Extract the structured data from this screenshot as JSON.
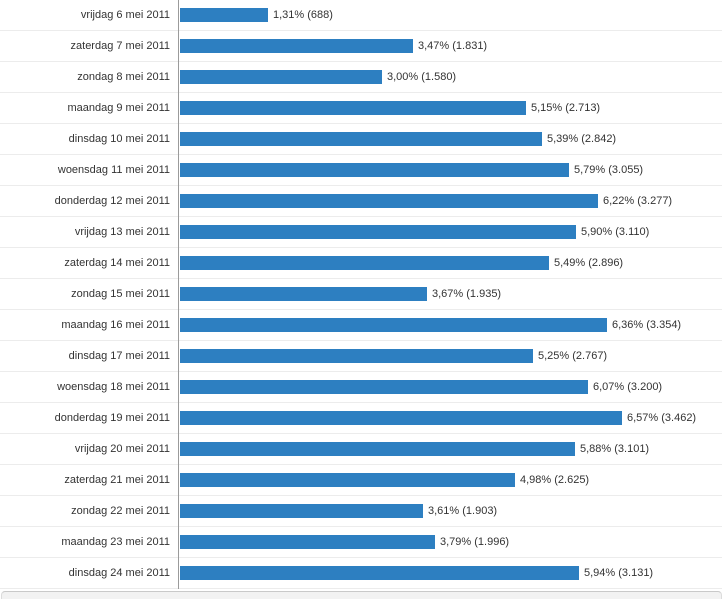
{
  "chart_data": {
    "type": "bar",
    "orientation": "horizontal",
    "categories": [
      "vrijdag 6 mei 2011",
      "zaterdag 7 mei 2011",
      "zondag 8 mei 2011",
      "maandag 9 mei 2011",
      "dinsdag 10 mei 2011",
      "woensdag 11 mei 2011",
      "donderdag 12 mei 2011",
      "vrijdag 13 mei 2011",
      "zaterdag 14 mei 2011",
      "zondag 15 mei 2011",
      "maandag 16 mei 2011",
      "dinsdag 17 mei 2011",
      "woensdag 18 mei 2011",
      "donderdag 19 mei 2011",
      "vrijdag 20 mei 2011",
      "zaterdag 21 mei 2011",
      "zondag 22 mei 2011",
      "maandag 23 mei 2011",
      "dinsdag 24 mei 2011"
    ],
    "values": [
      1.31,
      3.47,
      3.0,
      5.15,
      5.39,
      5.79,
      6.22,
      5.9,
      5.49,
      3.67,
      6.36,
      5.25,
      6.07,
      6.57,
      5.88,
      4.98,
      3.61,
      3.79,
      5.94
    ],
    "counts": [
      688,
      1831,
      1580,
      2713,
      2842,
      3055,
      3277,
      3110,
      2896,
      1935,
      3354,
      2767,
      3200,
      3462,
      3101,
      2625,
      1903,
      1996,
      3131
    ],
    "value_labels": [
      "1,31% (688)",
      "3,47% (1.831)",
      "3,00% (1.580)",
      "5,15% (2.713)",
      "5,39% (2.842)",
      "5,79% (3.055)",
      "6,22% (3.277)",
      "5,90% (3.110)",
      "5,49% (2.896)",
      "3,67% (1.935)",
      "6,36% (3.354)",
      "5,25% (2.767)",
      "6,07% (3.200)",
      "6,57% (3.462)",
      "5,88% (3.101)",
      "4,98% (2.625)",
      "3,61% (1.903)",
      "3,79% (1.996)",
      "5,94% (3.131)"
    ],
    "bar_color": "#2d7fc1",
    "xlim": [
      0,
      8.05
    ],
    "grid": "row-separator-lines",
    "legend": "none",
    "title": "",
    "xlabel": "",
    "ylabel": ""
  }
}
